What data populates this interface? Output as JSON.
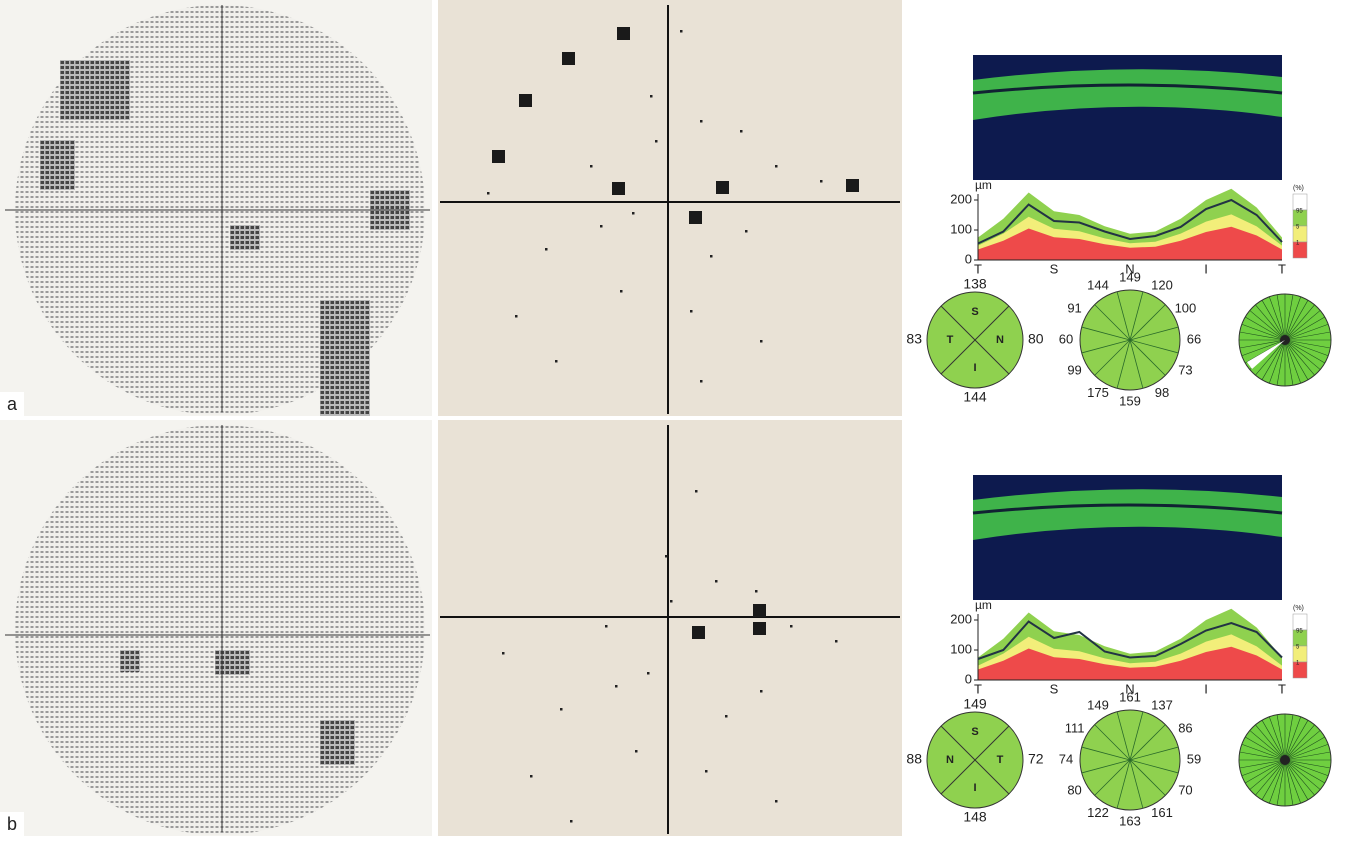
{
  "panels": [
    {
      "label": "a",
      "oct": {
        "y_unit": "µm",
        "ylim": [
          0,
          220
        ],
        "yticks": [
          0,
          100,
          200
        ],
        "x_labels": [
          "T",
          "S",
          "N",
          "I",
          "T"
        ],
        "legend": {
          "title": "(%)",
          "labels": [
            "95",
            "5",
            "1"
          ]
        },
        "profile": [
          55,
          95,
          185,
          130,
          125,
          95,
          70,
          80,
          110,
          170,
          200,
          150,
          60
        ]
      },
      "quadrants": {
        "top": "138",
        "left": "83",
        "right": "80",
        "bottom": "144",
        "letters": [
          "S",
          "T",
          "N",
          "I"
        ]
      },
      "clock": [
        "149",
        "120",
        "100",
        "66",
        "73",
        "98",
        "159",
        "175",
        "99",
        "60",
        "91",
        "144"
      ]
    },
    {
      "label": "b",
      "oct": {
        "y_unit": "µm",
        "ylim": [
          0,
          220
        ],
        "yticks": [
          0,
          100,
          200
        ],
        "x_labels": [
          "T",
          "S",
          "N",
          "I",
          "T"
        ],
        "legend": {
          "title": "(%)",
          "labels": [
            "95",
            "5",
            "1"
          ]
        },
        "profile": [
          70,
          100,
          195,
          140,
          160,
          95,
          75,
          80,
          120,
          165,
          190,
          160,
          75
        ]
      },
      "quadrants": {
        "top": "149",
        "left": "88",
        "right": "72",
        "bottom": "148",
        "letters": [
          "S",
          "N",
          "T",
          "I"
        ]
      },
      "clock": [
        "161",
        "137",
        "86",
        "59",
        "70",
        "161",
        "163",
        "122",
        "80",
        "74",
        "111",
        "149"
      ]
    }
  ]
}
